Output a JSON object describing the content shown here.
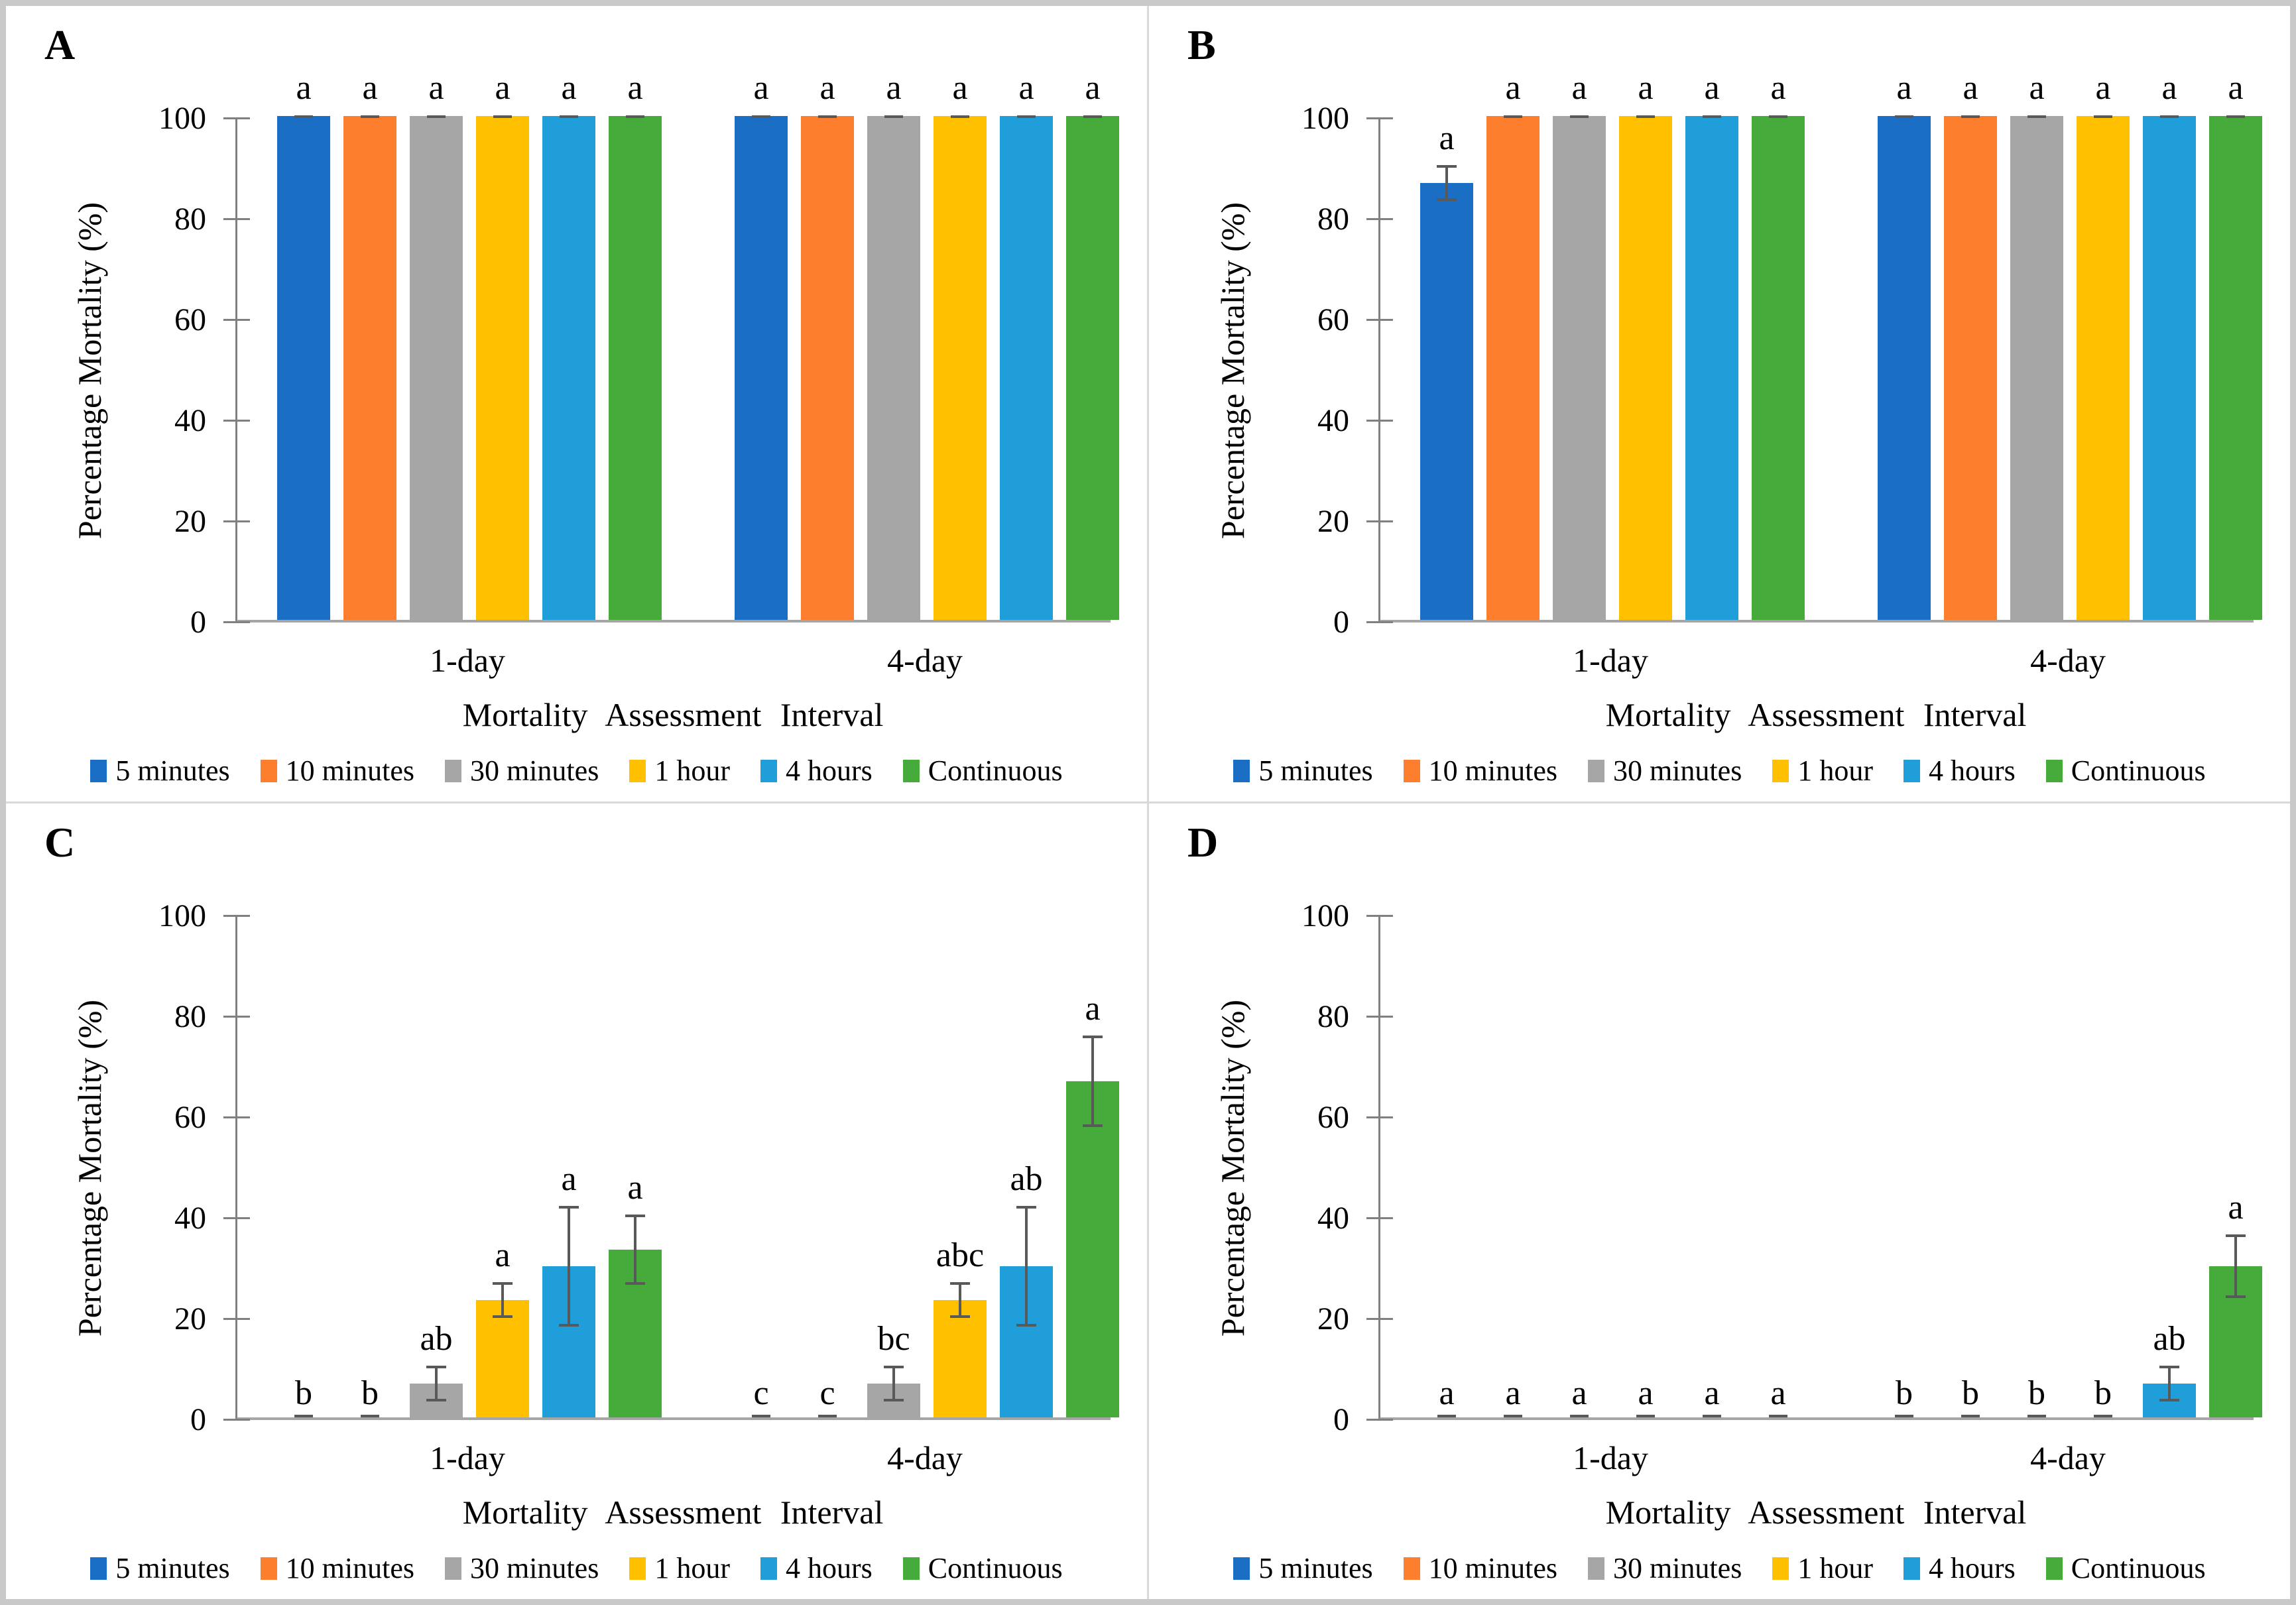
{
  "figure": {
    "background": "#ffffff",
    "outer_border_color": "#c9c9c9",
    "divider_color": "#d9d9d9",
    "axis_color": "#808080",
    "baseline_color": "#a6a6a6",
    "error_bar_color": "#595959",
    "y_axis": {
      "label": "Percentage Mortality (%)",
      "ticks": [
        0,
        20,
        40,
        60,
        80,
        100
      ],
      "min": 0,
      "max": 100
    },
    "x_axis": {
      "label": "Mortality Assessment Interval",
      "categories": [
        "1-day",
        "4-day"
      ]
    },
    "legend": [
      {
        "name": "5  minutes",
        "color": "#1A6FC5"
      },
      {
        "name": "10 minutes",
        "color": "#FD7E2D"
      },
      {
        "name": "30 minutes",
        "color": "#A6A6A6"
      },
      {
        "name": "1 hour",
        "color": "#FFC000"
      },
      {
        "name": "4 hours",
        "color": "#1F9ED9"
      },
      {
        "name": "Continuous",
        "color": "#46AB3A"
      }
    ]
  },
  "chart_data": [
    {
      "panel": "A",
      "type": "bar",
      "categories": [
        "1-day",
        "4-day"
      ],
      "ylim": [
        0,
        100
      ],
      "xlabel": "Mortality Assessment Interval",
      "ylabel": "Percentage Mortality (%)",
      "series": [
        {
          "name": "5 minutes",
          "values": [
            100,
            100
          ],
          "errors": [
            0.5,
            0.5
          ],
          "letters": [
            "a",
            "a"
          ]
        },
        {
          "name": "10 minutes",
          "values": [
            100,
            100
          ],
          "errors": [
            0.5,
            0.5
          ],
          "letters": [
            "a",
            "a"
          ]
        },
        {
          "name": "30 minutes",
          "values": [
            100,
            100
          ],
          "errors": [
            0.5,
            0.5
          ],
          "letters": [
            "a",
            "a"
          ]
        },
        {
          "name": "1 hour",
          "values": [
            100,
            100
          ],
          "errors": [
            0.5,
            0.5
          ],
          "letters": [
            "a",
            "a"
          ]
        },
        {
          "name": "4 hours",
          "values": [
            100,
            100
          ],
          "errors": [
            0.5,
            0.5
          ],
          "letters": [
            "a",
            "a"
          ]
        },
        {
          "name": "Continuous",
          "values": [
            100,
            100
          ],
          "errors": [
            0.5,
            0.5
          ],
          "letters": [
            "a",
            "a"
          ]
        }
      ]
    },
    {
      "panel": "B",
      "type": "bar",
      "categories": [
        "1-day",
        "4-day"
      ],
      "ylim": [
        0,
        100
      ],
      "xlabel": "Mortality Assessment Interval",
      "ylabel": "Percentage Mortality (%)",
      "series": [
        {
          "name": "5 minutes",
          "values": [
            86.7,
            100
          ],
          "errors": [
            3.3,
            0.5
          ],
          "letters": [
            "a",
            "a"
          ]
        },
        {
          "name": "10 minutes",
          "values": [
            100,
            100
          ],
          "errors": [
            0.5,
            0.5
          ],
          "letters": [
            "a",
            "a"
          ]
        },
        {
          "name": "30 minutes",
          "values": [
            100,
            100
          ],
          "errors": [
            0.5,
            0.5
          ],
          "letters": [
            "a",
            "a"
          ]
        },
        {
          "name": "1 hour",
          "values": [
            100,
            100
          ],
          "errors": [
            0.5,
            0.5
          ],
          "letters": [
            "a",
            "a"
          ]
        },
        {
          "name": "4 hours",
          "values": [
            100,
            100
          ],
          "errors": [
            0.5,
            0.5
          ],
          "letters": [
            "a",
            "a"
          ]
        },
        {
          "name": "Continuous",
          "values": [
            100,
            100
          ],
          "errors": [
            0.5,
            0.5
          ],
          "letters": [
            "a",
            "a"
          ]
        }
      ]
    },
    {
      "panel": "C",
      "type": "bar",
      "categories": [
        "1-day",
        "4-day"
      ],
      "ylim": [
        0,
        100
      ],
      "xlabel": "Mortality Assessment Interval",
      "ylabel": "Percentage Mortality (%)",
      "series": [
        {
          "name": "5 minutes",
          "values": [
            0,
            0
          ],
          "errors": [
            0,
            0
          ],
          "letters": [
            "b",
            "c"
          ]
        },
        {
          "name": "10 minutes",
          "values": [
            0,
            0
          ],
          "errors": [
            0,
            0
          ],
          "letters": [
            "b",
            "c"
          ]
        },
        {
          "name": "30 minutes",
          "values": [
            6.7,
            6.7
          ],
          "errors": [
            3.3,
            3.3
          ],
          "letters": [
            "ab",
            "bc"
          ]
        },
        {
          "name": "1 hour",
          "values": [
            23.3,
            23.3
          ],
          "errors": [
            3.3,
            3.3
          ],
          "letters": [
            "a",
            "abc"
          ]
        },
        {
          "name": "4 hours",
          "values": [
            30,
            30
          ],
          "errors": [
            11.7,
            11.7
          ],
          "letters": [
            "a",
            "ab"
          ]
        },
        {
          "name": "Continuous",
          "values": [
            33.3,
            66.7
          ],
          "errors": [
            6.7,
            8.8
          ],
          "letters": [
            "a",
            "a"
          ]
        }
      ]
    },
    {
      "panel": "D",
      "type": "bar",
      "categories": [
        "1-day",
        "4-day"
      ],
      "ylim": [
        0,
        100
      ],
      "xlabel": "Mortality Assessment Interval",
      "ylabel": "Percentage Mortality (%)",
      "series": [
        {
          "name": "5 minutes",
          "values": [
            0,
            0
          ],
          "errors": [
            0,
            0
          ],
          "letters": [
            "a",
            "b"
          ]
        },
        {
          "name": "10 minutes",
          "values": [
            0,
            0
          ],
          "errors": [
            0,
            0
          ],
          "letters": [
            "a",
            "b"
          ]
        },
        {
          "name": "30 minutes",
          "values": [
            0,
            0
          ],
          "errors": [
            0,
            0
          ],
          "letters": [
            "a",
            "b"
          ]
        },
        {
          "name": "1 hour",
          "values": [
            0,
            0
          ],
          "errors": [
            0,
            0
          ],
          "letters": [
            "a",
            "b"
          ]
        },
        {
          "name": "4 hours",
          "values": [
            0,
            6.7
          ],
          "errors": [
            0,
            3.3
          ],
          "letters": [
            "a",
            "ab"
          ]
        },
        {
          "name": "Continuous",
          "values": [
            0,
            30
          ],
          "errors": [
            0,
            6.0
          ],
          "letters": [
            "a",
            "a"
          ]
        }
      ]
    }
  ]
}
